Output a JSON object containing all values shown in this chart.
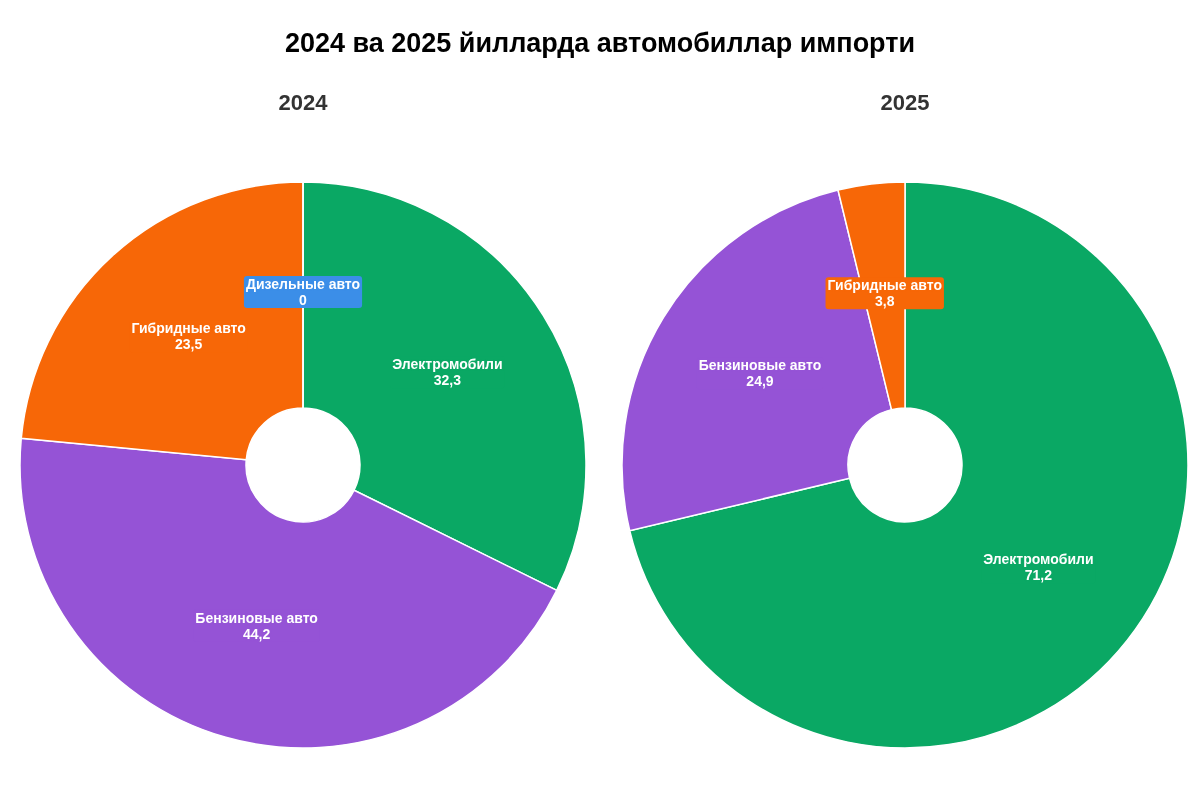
{
  "chart_data": [
    {
      "type": "donut",
      "title": "2024 ва 2025 йилларда автомобиллар импорти",
      "subtitle": "2024",
      "categories": [
        "Электромобили",
        "Бензиновые авто",
        "Гибридные авто",
        "Дизельные авто"
      ],
      "values": [
        32.3,
        44.2,
        23.5,
        0
      ],
      "colors": [
        "#0aa864",
        "#9553d6",
        "#f76707",
        "#3b8ee8"
      ],
      "value_labels": [
        "32,3",
        "44,2",
        "23,5",
        "0"
      ]
    },
    {
      "type": "donut",
      "subtitle": "2025",
      "categories": [
        "Электромобили",
        "Бензиновые авто",
        "Гибридные авто"
      ],
      "values": [
        71.2,
        24.9,
        3.8
      ],
      "colors": [
        "#0aa864",
        "#9553d6",
        "#f76707"
      ],
      "value_labels": [
        "71,2",
        "24,9",
        "3,8"
      ]
    }
  ]
}
